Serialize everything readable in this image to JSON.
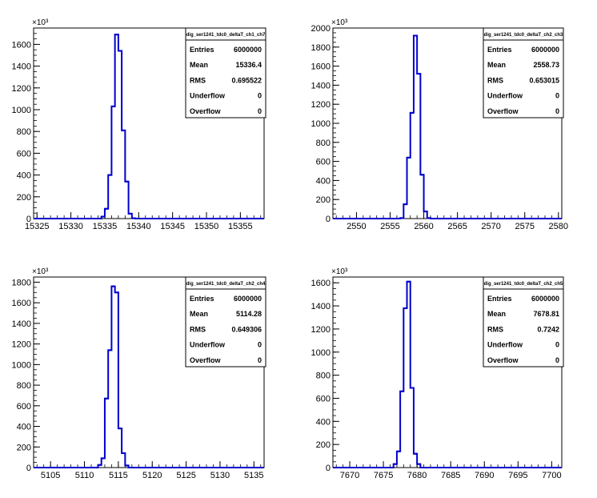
{
  "chart_data": [
    {
      "type": "histogram",
      "stats_title": "dig_ser1241_tdc0_deltaT_ch1_ch7",
      "stats": [
        {
          "label": "Entries",
          "value": "6000000"
        },
        {
          "label": "Mean",
          "value": "15336.4"
        },
        {
          "label": "RMS",
          "value": "0.695522"
        },
        {
          "label": "Underflow",
          "value": "0"
        },
        {
          "label": "Overflow",
          "value": "0"
        }
      ],
      "xlim": [
        15324.5,
        15358.5
      ],
      "ylim": [
        0,
        1750
      ],
      "y_multiplier": "×10³",
      "xticks": [
        15325,
        15330,
        15335,
        15340,
        15345,
        15350,
        15355
      ],
      "xticklabels": [
        "15325",
        "15330",
        "15335",
        "15340",
        "15345",
        "15350",
        "15355"
      ],
      "yticks": [
        0,
        200,
        400,
        600,
        800,
        1000,
        1200,
        1400,
        1600
      ],
      "yticklabels": [
        "0",
        "200",
        "400",
        "600",
        "800",
        "1000",
        "1200",
        "1400",
        "1600"
      ],
      "bin_width": 0.5,
      "bins": [
        {
          "x": 15334.5,
          "y": 18
        },
        {
          "x": 15335.0,
          "y": 90
        },
        {
          "x": 15335.5,
          "y": 400
        },
        {
          "x": 15336.0,
          "y": 1030
        },
        {
          "x": 15336.5,
          "y": 1690
        },
        {
          "x": 15337.0,
          "y": 1540
        },
        {
          "x": 15337.5,
          "y": 810
        },
        {
          "x": 15338.0,
          "y": 340
        },
        {
          "x": 15338.5,
          "y": 45
        },
        {
          "x": 15339.0,
          "y": 3
        }
      ]
    },
    {
      "type": "histogram",
      "stats_title": "dig_ser1241_tdc0_deltaT_ch2_ch3",
      "stats": [
        {
          "label": "Entries",
          "value": "6000000"
        },
        {
          "label": "Mean",
          "value": "2558.73"
        },
        {
          "label": "RMS",
          "value": "0.653015"
        },
        {
          "label": "Underflow",
          "value": "0"
        },
        {
          "label": "Overflow",
          "value": "0"
        }
      ],
      "xlim": [
        2546.5,
        2580.5
      ],
      "ylim": [
        0,
        2000
      ],
      "y_multiplier": "×10³",
      "xticks": [
        2550,
        2555,
        2560,
        2565,
        2570,
        2575,
        2580
      ],
      "xticklabels": [
        "2550",
        "2555",
        "2560",
        "2565",
        "2570",
        "2575",
        "2580"
      ],
      "yticks": [
        0,
        200,
        400,
        600,
        800,
        1000,
        1200,
        1400,
        1600,
        1800,
        2000
      ],
      "yticklabels": [
        "0",
        "200",
        "400",
        "600",
        "800",
        "1000",
        "1200",
        "1400",
        "1600",
        "1800",
        "2000"
      ],
      "bin_width": 0.5,
      "bins": [
        {
          "x": 2556.5,
          "y": 5
        },
        {
          "x": 2557.0,
          "y": 150
        },
        {
          "x": 2557.5,
          "y": 640
        },
        {
          "x": 2558.0,
          "y": 1110
        },
        {
          "x": 2558.5,
          "y": 1920
        },
        {
          "x": 2559.0,
          "y": 1520
        },
        {
          "x": 2559.5,
          "y": 460
        },
        {
          "x": 2560.0,
          "y": 75
        },
        {
          "x": 2560.5,
          "y": 5
        }
      ]
    },
    {
      "type": "histogram",
      "stats_title": "dig_ser1241_tdc0_deltaT_ch2_ch4",
      "stats": [
        {
          "label": "Entries",
          "value": "6000000"
        },
        {
          "label": "Mean",
          "value": "5114.28"
        },
        {
          "label": "RMS",
          "value": "0.649306"
        },
        {
          "label": "Underflow",
          "value": "0"
        },
        {
          "label": "Overflow",
          "value": "0"
        }
      ],
      "xlim": [
        5102.5,
        5136.5
      ],
      "ylim": [
        0,
        1850
      ],
      "y_multiplier": "×10³",
      "xticks": [
        5105,
        5110,
        5115,
        5120,
        5125,
        5130,
        5135
      ],
      "xticklabels": [
        "5105",
        "5110",
        "5115",
        "5120",
        "5125",
        "5130",
        "5135"
      ],
      "yticks": [
        0,
        200,
        400,
        600,
        800,
        1000,
        1200,
        1400,
        1600,
        1800
      ],
      "yticklabels": [
        "0",
        "200",
        "400",
        "600",
        "800",
        "1000",
        "1200",
        "1400",
        "1600",
        "1800"
      ],
      "bin_width": 0.5,
      "bins": [
        {
          "x": 5112.0,
          "y": 25
        },
        {
          "x": 5112.5,
          "y": 90
        },
        {
          "x": 5113.0,
          "y": 670
        },
        {
          "x": 5113.5,
          "y": 1140
        },
        {
          "x": 5114.0,
          "y": 1760
        },
        {
          "x": 5114.5,
          "y": 1700
        },
        {
          "x": 5115.0,
          "y": 380
        },
        {
          "x": 5115.5,
          "y": 140
        },
        {
          "x": 5116.0,
          "y": 20
        }
      ]
    },
    {
      "type": "histogram",
      "stats_title": "dig_ser1241_tdc0_deltaT_ch2_ch5",
      "stats": [
        {
          "label": "Entries",
          "value": "6000000"
        },
        {
          "label": "Mean",
          "value": "7678.81"
        },
        {
          "label": "RMS",
          "value": "0.7242"
        },
        {
          "label": "Underflow",
          "value": "0"
        },
        {
          "label": "Overflow",
          "value": "0"
        }
      ],
      "xlim": [
        7667.5,
        7701.5
      ],
      "ylim": [
        0,
        1650
      ],
      "y_multiplier": "×10³",
      "xticks": [
        7670,
        7675,
        7680,
        7685,
        7690,
        7695,
        7700
      ],
      "xticklabels": [
        "7670",
        "7675",
        "7680",
        "7685",
        "7690",
        "7695",
        "7700"
      ],
      "yticks": [
        0,
        200,
        400,
        600,
        800,
        1000,
        1200,
        1400,
        1600
      ],
      "yticklabels": [
        "0",
        "200",
        "400",
        "600",
        "800",
        "1000",
        "1200",
        "1400",
        "1600"
      ],
      "bin_width": 0.5,
      "bins": [
        {
          "x": 7676.5,
          "y": 30
        },
        {
          "x": 7677.0,
          "y": 140
        },
        {
          "x": 7677.5,
          "y": 660
        },
        {
          "x": 7678.0,
          "y": 1380
        },
        {
          "x": 7678.5,
          "y": 1610
        },
        {
          "x": 7679.0,
          "y": 690
        },
        {
          "x": 7679.5,
          "y": 120
        },
        {
          "x": 7680.0,
          "y": 30
        }
      ]
    }
  ],
  "colors": {
    "line": "#0000cc",
    "axis": "#000000",
    "background": "#ffffff"
  }
}
